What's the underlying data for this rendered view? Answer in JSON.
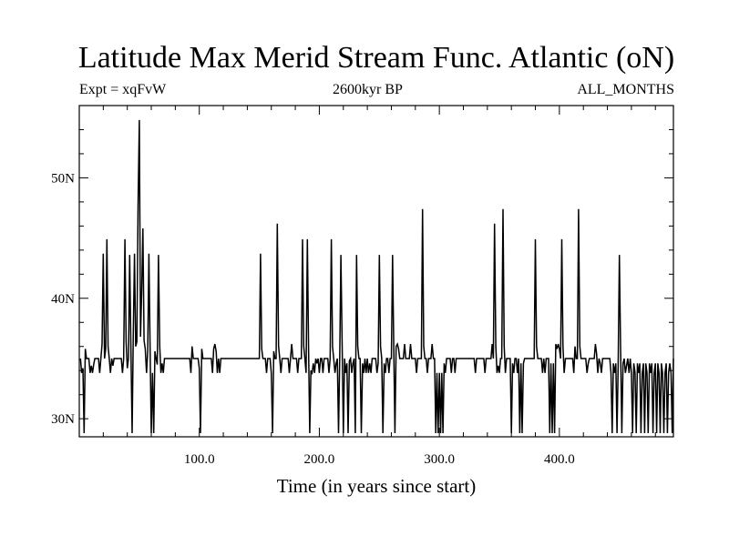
{
  "chart_data": {
    "type": "line",
    "title": "Latitude Max Merid Stream Func. Atlantic (oN)",
    "subtitle_left": "Expt = xqFvW",
    "subtitle_center": "2600kyr BP",
    "subtitle_right": "ALL_MONTHS",
    "xlabel": "Time (in years since start)",
    "ylabel": "",
    "xlim": [
      0,
      495
    ],
    "ylim": [
      28.5,
      56
    ],
    "xticks": [
      {
        "value": 100,
        "label": "100.0"
      },
      {
        "value": 200,
        "label": "200.0"
      },
      {
        "value": 300,
        "label": "300.0"
      },
      {
        "value": 400,
        "label": "400.0"
      }
    ],
    "yticks": [
      {
        "value": 30,
        "label": "30N"
      },
      {
        "value": 40,
        "label": "40N"
      },
      {
        "value": 50,
        "label": "50N"
      }
    ],
    "grid": false,
    "series": [
      {
        "color": "#000000",
        "baseline": 35,
        "x_start": 1,
        "x_end": 495,
        "events": [
          [
            2,
            33.8
          ],
          [
            3,
            34.2
          ],
          [
            4,
            28.8
          ],
          [
            5,
            35.8
          ],
          [
            9,
            33.8
          ],
          [
            10,
            34.4
          ],
          [
            11,
            33.8
          ],
          [
            12,
            34.5
          ],
          [
            17,
            33.8
          ],
          [
            19,
            36.2
          ],
          [
            20,
            43.7
          ],
          [
            22,
            35.8
          ],
          [
            23,
            44.9
          ],
          [
            24,
            36.0
          ],
          [
            26,
            33.8
          ],
          [
            28,
            34.4
          ],
          [
            36,
            33.8
          ],
          [
            38,
            44.9
          ],
          [
            39,
            36.4
          ],
          [
            40,
            34.2
          ],
          [
            42,
            43.6
          ],
          [
            43,
            36.2
          ],
          [
            44,
            28.8
          ],
          [
            45,
            37.2
          ],
          [
            46,
            43.7
          ],
          [
            47,
            36.0
          ],
          [
            48,
            36.4
          ],
          [
            49,
            47.7
          ],
          [
            50,
            54.8
          ],
          [
            51,
            36.8
          ],
          [
            52,
            40.6
          ],
          [
            53,
            45.8
          ],
          [
            54,
            36.5
          ],
          [
            55,
            35.8
          ],
          [
            56,
            33.8
          ],
          [
            57,
            35.6
          ],
          [
            58,
            43.7
          ],
          [
            59,
            36.0
          ],
          [
            60,
            28.8
          ],
          [
            61,
            33.8
          ],
          [
            62,
            28.8
          ],
          [
            63,
            35.6
          ],
          [
            65,
            34.5
          ],
          [
            66,
            43.6
          ],
          [
            67,
            36.0
          ],
          [
            68,
            33.8
          ],
          [
            69,
            34.6
          ],
          [
            70,
            33.8
          ],
          [
            93,
            33.8
          ],
          [
            94,
            36.0
          ],
          [
            100,
            34.2
          ],
          [
            101,
            28.8
          ],
          [
            102,
            35.8
          ],
          [
            111,
            33.8
          ],
          [
            112,
            35.8
          ],
          [
            113,
            36.2
          ],
          [
            114,
            35.6
          ],
          [
            115,
            33.8
          ],
          [
            117,
            33.8
          ],
          [
            151,
            43.7
          ],
          [
            152,
            35.8
          ],
          [
            156,
            33.8
          ],
          [
            160,
            33.8
          ],
          [
            161,
            28.8
          ],
          [
            162,
            35.6
          ],
          [
            165,
            46.2
          ],
          [
            166,
            36.0
          ],
          [
            168,
            33.8
          ],
          [
            175,
            33.8
          ],
          [
            177,
            36.2
          ],
          [
            182,
            33.8
          ],
          [
            186,
            44.9
          ],
          [
            187,
            36.0
          ],
          [
            189,
            33.8
          ],
          [
            190,
            44.9
          ],
          [
            191,
            36.0
          ],
          [
            192,
            28.8
          ],
          [
            193,
            34.0
          ],
          [
            194,
            33.8
          ],
          [
            195,
            34.6
          ],
          [
            196,
            33.8
          ],
          [
            198,
            34.6
          ],
          [
            200,
            33.8
          ],
          [
            203,
            33.8
          ],
          [
            208,
            33.8
          ],
          [
            210,
            44.9
          ],
          [
            211,
            36.0
          ],
          [
            213,
            33.8
          ],
          [
            214,
            34.6
          ],
          [
            216,
            28.8
          ],
          [
            218,
            43.6
          ],
          [
            219,
            36.0
          ],
          [
            220,
            28.8
          ],
          [
            222,
            33.8
          ],
          [
            223,
            34.6
          ],
          [
            224,
            28.8
          ],
          [
            225,
            34.8
          ],
          [
            227,
            33.8
          ],
          [
            228,
            34.6
          ],
          [
            230,
            28.8
          ],
          [
            231,
            43.6
          ],
          [
            232,
            36.0
          ],
          [
            235,
            28.8
          ],
          [
            236,
            34.6
          ],
          [
            237,
            33.8
          ],
          [
            239,
            33.8
          ],
          [
            241,
            33.8
          ],
          [
            242,
            34.6
          ],
          [
            243,
            33.8
          ],
          [
            248,
            33.8
          ],
          [
            249,
            34.6
          ],
          [
            250,
            43.6
          ],
          [
            251,
            36.0
          ],
          [
            253,
            28.8
          ],
          [
            254,
            34.6
          ],
          [
            255,
            33.8
          ],
          [
            258,
            33.8
          ],
          [
            261,
            43.6
          ],
          [
            262,
            36.0
          ],
          [
            263,
            28.8
          ],
          [
            264,
            36.0
          ],
          [
            265,
            36.2
          ],
          [
            266,
            35.8
          ],
          [
            271,
            36.2
          ],
          [
            276,
            36.2
          ],
          [
            281,
            33.8
          ],
          [
            286,
            47.4
          ],
          [
            287,
            36.0
          ],
          [
            290,
            33.8
          ],
          [
            294,
            36.2
          ],
          [
            297,
            28.8
          ],
          [
            298,
            33.8
          ],
          [
            299,
            28.8
          ],
          [
            300,
            33.8
          ],
          [
            301,
            28.8
          ],
          [
            302,
            33.8
          ],
          [
            303,
            28.8
          ],
          [
            304,
            34.6
          ],
          [
            305,
            33.8
          ],
          [
            310,
            33.8
          ],
          [
            313,
            33.8
          ],
          [
            330,
            33.8
          ],
          [
            338,
            33.8
          ],
          [
            344,
            36.2
          ],
          [
            346,
            46.2
          ],
          [
            347,
            36.0
          ],
          [
            348,
            33.8
          ],
          [
            349,
            34.4
          ],
          [
            350,
            33.8
          ],
          [
            353,
            47.4
          ],
          [
            354,
            36.0
          ],
          [
            355,
            33.8
          ],
          [
            360,
            28.8
          ],
          [
            361,
            34.6
          ],
          [
            362,
            33.8
          ],
          [
            365,
            33.8
          ],
          [
            367,
            28.8
          ],
          [
            368,
            34.6
          ],
          [
            369,
            28.8
          ],
          [
            370,
            34.6
          ],
          [
            380,
            44.9
          ],
          [
            381,
            36.0
          ],
          [
            386,
            33.8
          ],
          [
            388,
            33.8
          ],
          [
            392,
            28.8
          ],
          [
            393,
            34.6
          ],
          [
            394,
            28.8
          ],
          [
            395,
            34.6
          ],
          [
            396,
            28.8
          ],
          [
            397,
            36.2
          ],
          [
            398,
            35.8
          ],
          [
            399,
            36.2
          ],
          [
            400,
            35.8
          ],
          [
            402,
            44.9
          ],
          [
            403,
            36.0
          ],
          [
            404,
            33.8
          ],
          [
            412,
            33.8
          ],
          [
            413,
            36.0
          ],
          [
            416,
            47.4
          ],
          [
            417,
            36.0
          ],
          [
            423,
            33.8
          ],
          [
            424,
            34.6
          ],
          [
            430,
            36.2
          ],
          [
            431,
            35.4
          ],
          [
            432,
            33.8
          ],
          [
            434,
            34.6
          ],
          [
            435,
            33.8
          ],
          [
            443,
            33.8
          ],
          [
            444,
            28.8
          ],
          [
            445,
            34.6
          ],
          [
            446,
            33.8
          ],
          [
            447,
            34.6
          ],
          [
            448,
            28.8
          ],
          [
            449,
            34.6
          ],
          [
            450,
            43.6
          ],
          [
            451,
            36.0
          ],
          [
            452,
            28.8
          ],
          [
            453,
            34.6
          ],
          [
            455,
            33.8
          ],
          [
            456,
            34.4
          ],
          [
            458,
            33.8
          ],
          [
            460,
            33.8
          ],
          [
            461,
            28.8
          ],
          [
            462,
            34.6
          ],
          [
            463,
            33.8
          ],
          [
            464,
            28.8
          ],
          [
            465,
            34.6
          ],
          [
            466,
            33.8
          ],
          [
            467,
            34.6
          ],
          [
            468,
            28.8
          ],
          [
            469,
            33.8
          ],
          [
            470,
            34.6
          ],
          [
            471,
            28.8
          ],
          [
            472,
            34.6
          ],
          [
            473,
            33.8
          ],
          [
            474,
            28.8
          ],
          [
            475,
            34.6
          ],
          [
            476,
            33.8
          ],
          [
            477,
            34.6
          ],
          [
            478,
            28.8
          ],
          [
            479,
            33.8
          ],
          [
            480,
            34.6
          ],
          [
            481,
            28.8
          ],
          [
            482,
            34.6
          ],
          [
            483,
            33.8
          ],
          [
            484,
            28.8
          ],
          [
            485,
            34.6
          ],
          [
            486,
            33.8
          ],
          [
            487,
            28.8
          ],
          [
            488,
            33.8
          ],
          [
            489,
            34.6
          ],
          [
            490,
            28.8
          ],
          [
            491,
            33.8
          ],
          [
            492,
            34.6
          ],
          [
            493,
            33.8
          ],
          [
            494,
            28.8
          ]
        ]
      }
    ]
  }
}
